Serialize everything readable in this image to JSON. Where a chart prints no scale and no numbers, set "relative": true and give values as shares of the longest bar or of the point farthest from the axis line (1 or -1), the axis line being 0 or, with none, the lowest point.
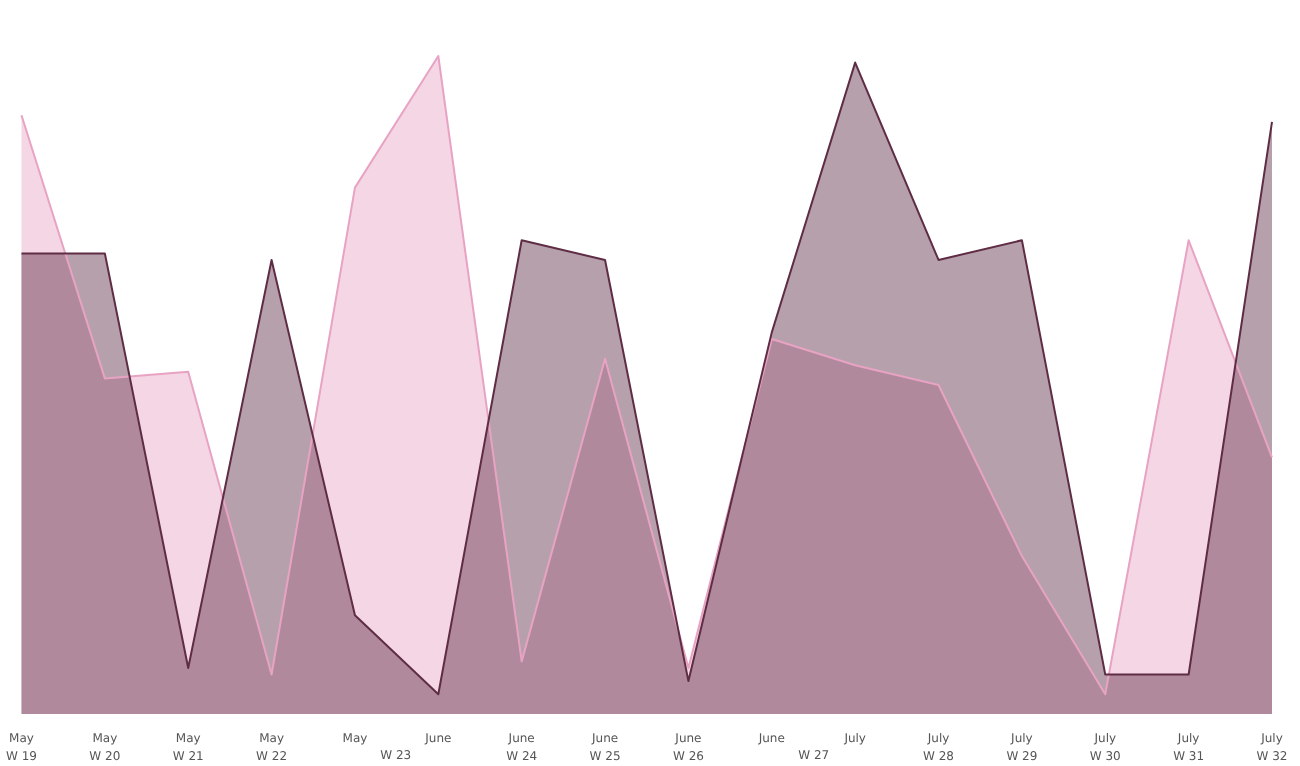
{
  "chart_data": {
    "type": "area",
    "relative": true,
    "categories": [
      "May\nW 19",
      "May\nW 20",
      "May\nW 21",
      "May\nW 22",
      "May",
      "June",
      "June\nW 24",
      "June\nW 25",
      "June\nW 26",
      "June",
      "July",
      "July\nW 28",
      "July\nW 29",
      "July\nW 30",
      "July\nW 31",
      "July\nW 32"
    ],
    "annotations": [
      "W 23",
      "W 27"
    ],
    "series": [
      {
        "color": "#e8a3c4",
        "values": [
          0.91,
          0.51,
          0.52,
          0.06,
          0.8,
          1.0,
          0.08,
          0.54,
          0.07,
          0.57,
          0.53,
          0.5,
          0.24,
          0.03,
          0.72,
          0.39
        ]
      },
      {
        "color": "#5e2d45",
        "values": [
          0.7,
          0.7,
          0.07,
          0.69,
          0.15,
          0.03,
          0.72,
          0.69,
          0.05,
          0.58,
          0.99,
          0.69,
          0.72,
          0.06,
          0.06,
          0.9
        ]
      }
    ]
  }
}
